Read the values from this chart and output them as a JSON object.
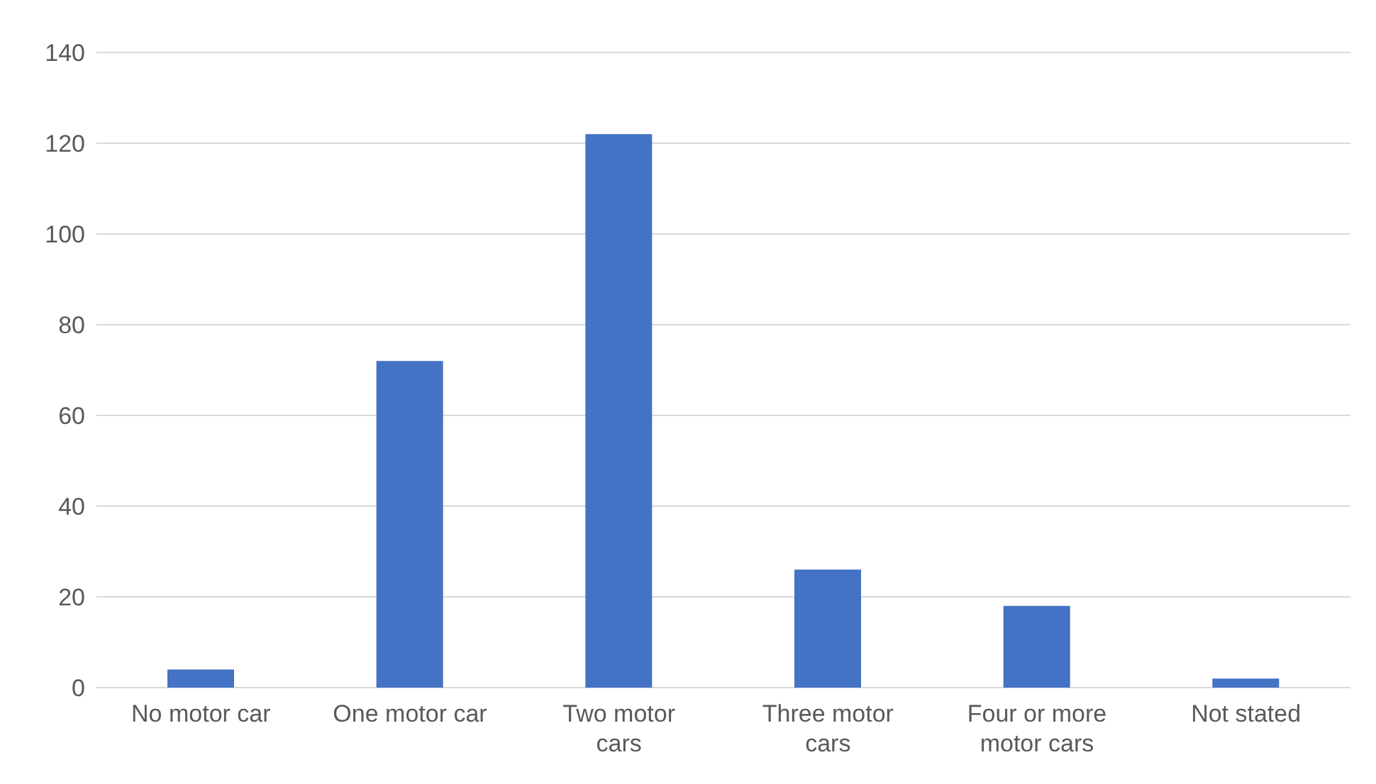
{
  "chart_data": {
    "type": "bar",
    "categories": [
      "No motor car",
      "One motor car",
      "Two motor cars",
      "Three motor cars",
      "Four or more motor cars",
      "Not stated"
    ],
    "values": [
      4,
      72,
      122,
      26,
      18,
      2
    ],
    "color": "#4472c4",
    "ylim": [
      0,
      140
    ],
    "yticks": [
      0,
      20,
      40,
      60,
      80,
      100,
      120,
      140
    ],
    "grid": "y"
  }
}
